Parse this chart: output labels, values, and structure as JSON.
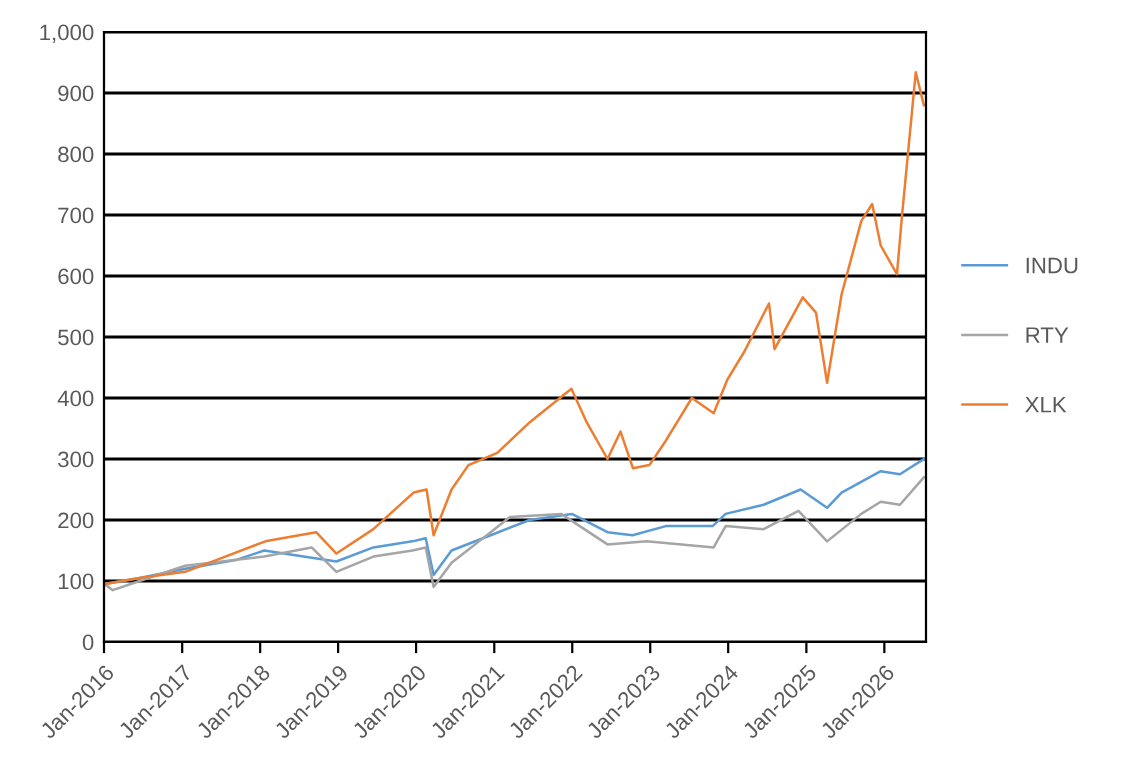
{
  "chart_data": {
    "type": "line",
    "series": [
      {
        "name": "INDU",
        "color": "#5b9bd5",
        "x": [
          "2016-01-04",
          "2016-06-15",
          "2017-01-15",
          "2017-09-15",
          "2018-01-20",
          "2018-12-24",
          "2019-06-15",
          "2019-12-15",
          "2020-02-15",
          "2020-03-23",
          "2020-06-15",
          "2020-12-15",
          "2021-06-15",
          "2021-12-30",
          "2022-06-15",
          "2022-10-10",
          "2023-03-15",
          "2023-10-20",
          "2023-12-20",
          "2024-06-15",
          "2024-12-05",
          "2025-04-08",
          "2025-06-15",
          "2025-12-15",
          "2026-03-15",
          "2026-07-05"
        ],
        "values": [
          95,
          105,
          120,
          135,
          150,
          132,
          155,
          165,
          170,
          110,
          150,
          175,
          200,
          210,
          180,
          175,
          190,
          190,
          210,
          225,
          250,
          220,
          245,
          280,
          275,
          300
        ]
      },
      {
        "name": "RTY",
        "color": "#a5a5a5",
        "x": [
          "2016-01-04",
          "2016-02-11",
          "2016-06-15",
          "2017-01-15",
          "2018-01-20",
          "2018-08-30",
          "2018-12-24",
          "2019-06-15",
          "2019-12-15",
          "2020-02-15",
          "2020-03-23",
          "2020-06-15",
          "2020-12-15",
          "2021-03-15",
          "2021-11-10",
          "2022-06-15",
          "2022-12-15",
          "2023-10-25",
          "2023-12-20",
          "2024-06-15",
          "2024-11-25",
          "2025-04-08",
          "2025-09-15",
          "2025-12-15",
          "2026-03-15",
          "2026-07-05"
        ],
        "values": [
          95,
          85,
          100,
          125,
          140,
          155,
          115,
          140,
          150,
          155,
          90,
          130,
          180,
          205,
          210,
          160,
          165,
          155,
          190,
          185,
          215,
          165,
          210,
          230,
          225,
          270
        ]
      },
      {
        "name": "XLK",
        "color": "#ed7d31",
        "x": [
          "2016-01-04",
          "2016-06-15",
          "2017-01-15",
          "2017-06-15",
          "2018-01-25",
          "2018-09-20",
          "2018-12-24",
          "2019-06-15",
          "2019-12-20",
          "2020-02-19",
          "2020-03-23",
          "2020-06-15",
          "2020-09-02",
          "2021-01-15",
          "2021-06-15",
          "2021-12-28",
          "2022-03-10",
          "2022-06-15",
          "2022-08-15",
          "2022-10-12",
          "2022-12-28",
          "2023-03-15",
          "2023-07-15",
          "2023-10-25",
          "2023-12-28",
          "2024-03-15",
          "2024-07-10",
          "2024-08-05",
          "2024-12-15",
          "2025-02-15",
          "2025-04-08",
          "2025-06-15",
          "2025-09-15",
          "2025-11-05",
          "2025-12-15",
          "2026-03-01",
          "2026-03-25",
          "2026-05-28",
          "2026-07-05"
        ],
        "values": [
          95,
          105,
          115,
          135,
          165,
          180,
          145,
          185,
          245,
          250,
          175,
          250,
          290,
          310,
          360,
          415,
          360,
          300,
          345,
          285,
          290,
          330,
          400,
          375,
          430,
          475,
          555,
          480,
          565,
          540,
          425,
          570,
          690,
          718,
          650,
          603,
          700,
          934,
          880
        ]
      }
    ],
    "ylim": [
      0,
      1000
    ],
    "yticks": [
      0,
      100,
      200,
      300,
      400,
      500,
      600,
      700,
      800,
      900,
      {
        "value": 1000,
        "label": "1,000"
      }
    ],
    "xlim": [
      "2016-01-01",
      "2026-07-15"
    ],
    "xticks": [
      {
        "value": "2016-01-01",
        "label": "Jan-2016"
      },
      {
        "value": "2017-01-01",
        "label": "Jan-2017"
      },
      {
        "value": "2018-01-01",
        "label": "Jan-2018"
      },
      {
        "value": "2019-01-01",
        "label": "Jan-2019"
      },
      {
        "value": "2020-01-01",
        "label": "Jan-2020"
      },
      {
        "value": "2021-01-01",
        "label": "Jan-2021"
      },
      {
        "value": "2022-01-01",
        "label": "Jan-2022"
      },
      {
        "value": "2023-01-01",
        "label": "Jan-2023"
      },
      {
        "value": "2024-01-01",
        "label": "Jan-2024"
      },
      {
        "value": "2025-01-01",
        "label": "Jan-2025"
      },
      {
        "value": "2026-01-01",
        "label": "Jan-2026"
      }
    ],
    "grid": "y",
    "legend": "right",
    "marker": "none",
    "line_style": "solid"
  }
}
